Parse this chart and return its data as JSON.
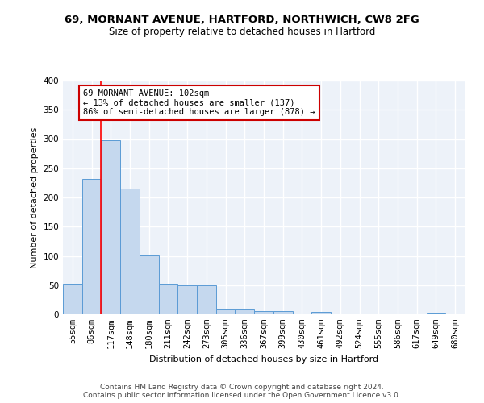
{
  "title1": "69, MORNANT AVENUE, HARTFORD, NORTHWICH, CW8 2FG",
  "title2": "Size of property relative to detached houses in Hartford",
  "xlabel": "Distribution of detached houses by size in Hartford",
  "ylabel": "Number of detached properties",
  "categories": [
    "55sqm",
    "86sqm",
    "117sqm",
    "148sqm",
    "180sqm",
    "211sqm",
    "242sqm",
    "273sqm",
    "305sqm",
    "336sqm",
    "367sqm",
    "399sqm",
    "430sqm",
    "461sqm",
    "492sqm",
    "524sqm",
    "555sqm",
    "586sqm",
    "617sqm",
    "649sqm",
    "680sqm"
  ],
  "values": [
    53,
    232,
    298,
    215,
    102,
    53,
    50,
    49,
    9,
    9,
    6,
    5,
    0,
    4,
    0,
    0,
    0,
    0,
    0,
    3,
    0
  ],
  "bar_color": "#c5d8ee",
  "bar_edge_color": "#5b9bd5",
  "annotation_text": "69 MORNANT AVENUE: 102sqm\n← 13% of detached houses are smaller (137)\n86% of semi-detached houses are larger (878) →",
  "annotation_box_color": "#ffffff",
  "annotation_box_edge": "#cc0000",
  "red_line_x": 1.5,
  "ylim": [
    0,
    400
  ],
  "yticks": [
    0,
    50,
    100,
    150,
    200,
    250,
    300,
    350,
    400
  ],
  "background_color": "#edf2f9",
  "grid_color": "#ffffff",
  "footer_text": "Contains HM Land Registry data © Crown copyright and database right 2024.\nContains public sector information licensed under the Open Government Licence v3.0.",
  "title1_fontsize": 9.5,
  "title2_fontsize": 8.5,
  "xlabel_fontsize": 8,
  "ylabel_fontsize": 8,
  "annotation_fontsize": 7.5,
  "footer_fontsize": 6.5,
  "tick_fontsize": 7.5
}
